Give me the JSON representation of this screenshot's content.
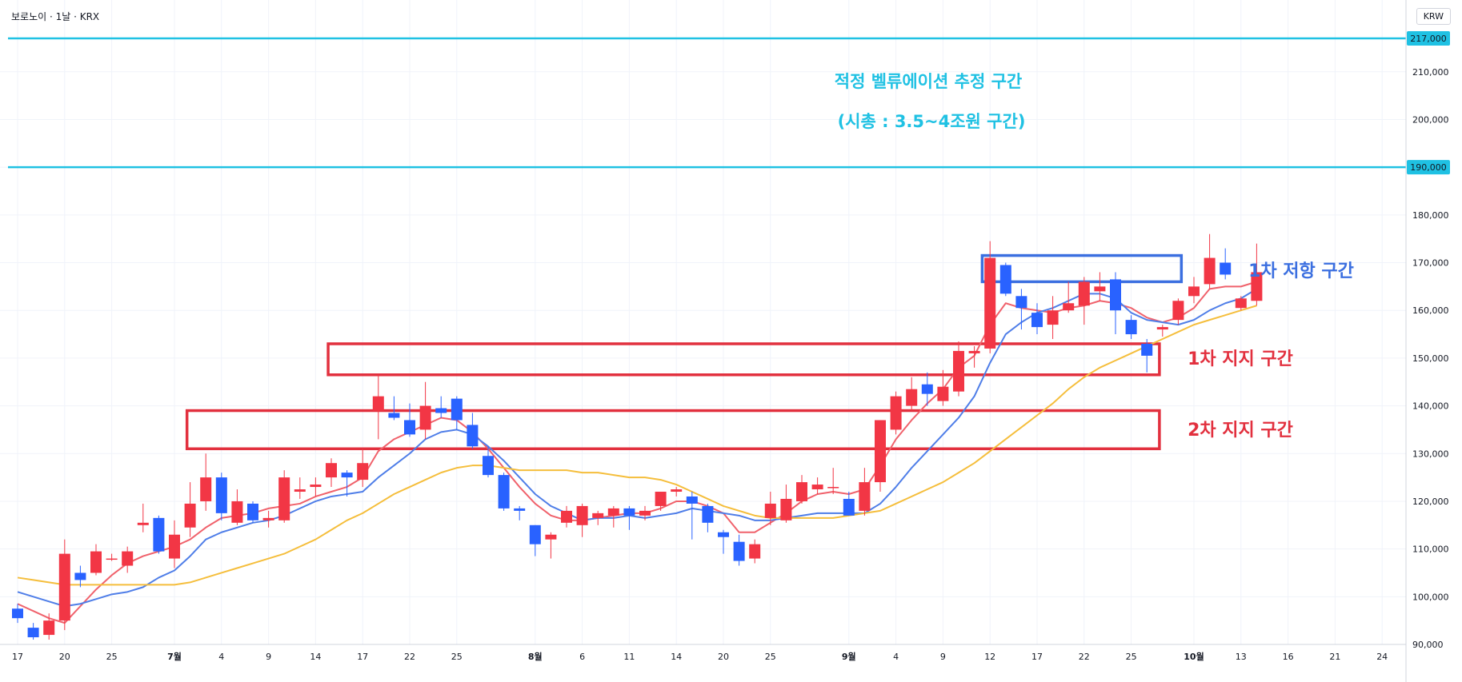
{
  "header": {
    "symbol_info": "보로노이 · 1날 · KRX",
    "currency": "KRW"
  },
  "colors": {
    "up": "#f23645",
    "down": "#2962ff",
    "ma_red": "#f0626c",
    "ma_blue": "#4f7ee8",
    "ma_yellow": "#f5be3c",
    "target_line": "#1fc1e3",
    "annotation_blue": "#3b6fe0",
    "annotation_red": "#e2303e",
    "text_cyan": "#1fc1e3"
  },
  "chart_data": {
    "type": "candlestick",
    "title": "",
    "xlabel": "",
    "ylabel": "",
    "ylim": [
      90000,
      220000
    ],
    "y_ticks": [
      90000,
      100000,
      110000,
      120000,
      130000,
      140000,
      150000,
      160000,
      170000,
      180000,
      190000,
      200000,
      210000,
      217000
    ],
    "y_tick_labels": [
      "90,000",
      "100,000",
      "110,000",
      "120,000",
      "130,000",
      "140,000",
      "150,000",
      "160,000",
      "170,000",
      "180,000",
      "190,000",
      "200,000",
      "210,000",
      "217,000"
    ],
    "grid": true,
    "x_ticks": [
      {
        "label": "17",
        "i": 0
      },
      {
        "label": "20",
        "i": 3
      },
      {
        "label": "25",
        "i": 6
      },
      {
        "label": "7월",
        "i": 10,
        "bold": true
      },
      {
        "label": "4",
        "i": 13
      },
      {
        "label": "9",
        "i": 16
      },
      {
        "label": "14",
        "i": 19
      },
      {
        "label": "17",
        "i": 22
      },
      {
        "label": "22",
        "i": 25
      },
      {
        "label": "25",
        "i": 28
      },
      {
        "label": "8월",
        "i": 33,
        "bold": true
      },
      {
        "label": "6",
        "i": 36
      },
      {
        "label": "11",
        "i": 39
      },
      {
        "label": "14",
        "i": 42
      },
      {
        "label": "20",
        "i": 45
      },
      {
        "label": "25",
        "i": 48
      },
      {
        "label": "9월",
        "i": 53,
        "bold": true
      },
      {
        "label": "4",
        "i": 56
      },
      {
        "label": "9",
        "i": 59
      },
      {
        "label": "12",
        "i": 62
      },
      {
        "label": "17",
        "i": 65
      },
      {
        "label": "22",
        "i": 68
      },
      {
        "label": "25",
        "i": 71
      },
      {
        "label": "10월",
        "i": 75,
        "bold": true
      },
      {
        "label": "13",
        "i": 78
      },
      {
        "label": "16",
        "i": 81
      },
      {
        "label": "21",
        "i": 84
      },
      {
        "label": "24",
        "i": 87
      }
    ],
    "candles": [
      [
        0,
        97500,
        95500,
        98500,
        94500
      ],
      [
        1,
        93500,
        91500,
        94500,
        91000
      ],
      [
        2,
        92000,
        95000,
        96500,
        91000
      ],
      [
        3,
        95000,
        109000,
        112000,
        93000
      ],
      [
        4,
        105000,
        103500,
        106500,
        102000
      ],
      [
        5,
        105000,
        109500,
        111000,
        104500
      ],
      [
        6,
        108000,
        108000,
        109000,
        107500
      ],
      [
        7,
        106500,
        109500,
        110500,
        105000
      ],
      [
        8,
        115000,
        115500,
        119500,
        113500
      ],
      [
        9,
        116500,
        109500,
        117000,
        109000
      ],
      [
        10,
        108000,
        113000,
        116000,
        106000
      ],
      [
        11,
        114500,
        119500,
        124000,
        112500
      ],
      [
        12,
        120000,
        125000,
        130000,
        118000
      ],
      [
        13,
        125000,
        117500,
        126000,
        116000
      ],
      [
        14,
        115500,
        120000,
        122500,
        115000
      ],
      [
        15,
        119500,
        116000,
        120000,
        115500
      ],
      [
        16,
        116000,
        116500,
        118000,
        114500
      ],
      [
        17,
        116000,
        125000,
        126500,
        115500
      ],
      [
        18,
        122000,
        122500,
        125000,
        120500
      ],
      [
        19,
        123000,
        123500,
        125000,
        121000
      ],
      [
        20,
        125000,
        128000,
        129000,
        123000
      ],
      [
        21,
        126000,
        125000,
        126500,
        121000
      ],
      [
        22,
        124500,
        128000,
        131000,
        123000
      ],
      [
        23,
        139000,
        142000,
        146500,
        133000
      ],
      [
        24,
        138500,
        137500,
        142000,
        137000
      ],
      [
        25,
        137000,
        134000,
        140500,
        133500
      ],
      [
        26,
        135000,
        140000,
        145000,
        133000
      ],
      [
        27,
        139500,
        138500,
        142000,
        137500
      ],
      [
        28,
        141500,
        137000,
        142000,
        135000
      ],
      [
        29,
        136000,
        131500,
        138500,
        131000
      ],
      [
        30,
        129500,
        125500,
        131500,
        125000
      ],
      [
        31,
        125500,
        118500,
        126000,
        118000
      ],
      [
        32,
        118500,
        118000,
        119000,
        116000
      ],
      [
        33,
        115000,
        111000,
        115000,
        108500
      ],
      [
        34,
        112000,
        113000,
        113500,
        108000
      ],
      [
        35,
        115500,
        118000,
        119000,
        114500
      ],
      [
        36,
        115000,
        119000,
        119500,
        112500
      ],
      [
        37,
        116500,
        117500,
        118000,
        115000
      ],
      [
        38,
        117000,
        118500,
        119000,
        114500
      ],
      [
        39,
        118500,
        117000,
        119000,
        114000
      ],
      [
        40,
        117000,
        118000,
        119000,
        116000
      ],
      [
        41,
        119000,
        122000,
        122000,
        118000
      ],
      [
        42,
        122000,
        122500,
        123000,
        121000
      ],
      [
        43,
        121000,
        119500,
        122000,
        112000
      ],
      [
        44,
        119000,
        115500,
        119500,
        113500
      ],
      [
        45,
        113500,
        112500,
        114000,
        109000
      ],
      [
        46,
        111500,
        107500,
        113000,
        106500
      ],
      [
        47,
        108000,
        111000,
        112000,
        107000
      ],
      [
        48,
        116500,
        119500,
        122000,
        115000
      ],
      [
        49,
        116000,
        120500,
        123500,
        115500
      ],
      [
        50,
        120000,
        124000,
        125500,
        119500
      ],
      [
        51,
        122500,
        123500,
        125000,
        121500
      ],
      [
        52,
        123000,
        123000,
        127000,
        121500
      ],
      [
        53,
        120500,
        117000,
        122000,
        117000
      ],
      [
        54,
        118000,
        124000,
        127000,
        117000
      ],
      [
        55,
        124000,
        137000,
        137000,
        122000
      ],
      [
        56,
        135000,
        142000,
        143000,
        134000
      ],
      [
        57,
        140000,
        143500,
        146000,
        139000
      ],
      [
        58,
        144500,
        142500,
        147000,
        140000
      ],
      [
        59,
        141000,
        144000,
        147500,
        140000
      ],
      [
        60,
        143000,
        151500,
        153500,
        142000
      ],
      [
        61,
        151000,
        151500,
        152500,
        148000
      ],
      [
        62,
        152000,
        171000,
        174500,
        151000
      ],
      [
        63,
        169500,
        163500,
        170000,
        163000
      ],
      [
        64,
        163000,
        160500,
        164500,
        156000
      ],
      [
        65,
        159500,
        156500,
        161500,
        155000
      ],
      [
        66,
        157000,
        160000,
        163000,
        154000
      ],
      [
        67,
        160000,
        161500,
        166000,
        159500
      ],
      [
        68,
        161000,
        166000,
        167000,
        157000
      ],
      [
        69,
        164000,
        165000,
        168000,
        162000
      ],
      [
        70,
        166500,
        160000,
        168000,
        155000
      ],
      [
        71,
        158000,
        155000,
        159000,
        154000
      ],
      [
        72,
        153000,
        150500,
        154000,
        147000
      ],
      [
        73,
        156000,
        156500,
        157000,
        154500
      ],
      [
        74,
        158000,
        162000,
        162500,
        157000
      ],
      [
        75,
        163000,
        165000,
        167000,
        161500
      ],
      [
        76,
        165500,
        171000,
        176000,
        164500
      ],
      [
        77,
        170000,
        167500,
        173000,
        166500
      ],
      [
        78,
        160500,
        162500,
        163000,
        160000
      ],
      [
        79,
        162000,
        168000,
        174000,
        161000
      ]
    ],
    "series": [
      {
        "values": [
          98500,
          97000,
          95500,
          94500,
          98000,
          101500,
          104500,
          107000,
          108500,
          109500,
          110500,
          112000,
          114500,
          116500,
          117000,
          117500,
          118500,
          119000,
          119500,
          121000,
          122000,
          123000,
          125000,
          130500,
          133000,
          134500,
          136000,
          137500,
          137000,
          134500,
          131000,
          127000,
          123000,
          119500,
          117000,
          116000,
          116000,
          116500,
          117000,
          117500,
          117500,
          118500,
          120000,
          120000,
          119000,
          117500,
          113500,
          113500,
          115500,
          117500,
          120000,
          121500,
          122000,
          121500,
          122500,
          127500,
          133000,
          137000,
          140500,
          143500,
          148000,
          150500,
          157000,
          161500,
          160500,
          160000,
          159500,
          160500,
          161000,
          162000,
          161500,
          160500,
          158500,
          157500,
          158500,
          160500,
          164500,
          165000,
          165000,
          166000
        ],
        "dash": null,
        "color_key": "ma_red"
      },
      {
        "values": [
          101000,
          100000,
          99000,
          98000,
          98500,
          99500,
          100500,
          101000,
          102000,
          104000,
          105500,
          108500,
          112000,
          113500,
          114500,
          115500,
          116000,
          117000,
          118500,
          120000,
          121000,
          121500,
          122000,
          125000,
          127500,
          130000,
          133000,
          134500,
          135000,
          134000,
          131500,
          128500,
          125000,
          121500,
          119000,
          117500,
          116000,
          116500,
          116500,
          117000,
          116500,
          117000,
          117500,
          118500,
          118000,
          117500,
          117000,
          116000,
          116000,
          116500,
          117000,
          117500,
          117500,
          117500,
          117500,
          119500,
          123000,
          127000,
          130500,
          134000,
          137500,
          142000,
          149000,
          155000,
          157500,
          159500,
          160500,
          162000,
          163500,
          163500,
          162500,
          159500,
          158000,
          157500,
          157000,
          158000,
          160000,
          161500,
          162500,
          164500
        ],
        "dash": null,
        "color_key": "ma_blue"
      },
      {
        "values": [
          104000,
          103500,
          103000,
          102500,
          102500,
          102500,
          102500,
          102500,
          102500,
          102500,
          102500,
          103000,
          104000,
          105000,
          106000,
          107000,
          108000,
          109000,
          110500,
          112000,
          114000,
          116000,
          117500,
          119500,
          121500,
          123000,
          124500,
          126000,
          127000,
          127500,
          127500,
          127000,
          126500,
          126500,
          126500,
          126500,
          126000,
          126000,
          125500,
          125000,
          125000,
          124500,
          123500,
          122000,
          120500,
          119000,
          118000,
          117000,
          116500,
          116500,
          116500,
          116500,
          116500,
          117000,
          117500,
          118000,
          119500,
          121000,
          122500,
          124000,
          126000,
          128000,
          130500,
          133000,
          135500,
          138000,
          140500,
          143500,
          146000,
          148000,
          149500,
          151000,
          152500,
          154000,
          155500,
          157000,
          158000,
          159000,
          160000,
          161000
        ],
        "dash": null,
        "color_key": "ma_yellow"
      }
    ],
    "reference_lines": [
      {
        "value": 217000,
        "label": "217,000"
      },
      {
        "value": 190000,
        "label": "190,000"
      }
    ],
    "annotations": {
      "valuation_line1": "적정 벨류에이션 추정 구간",
      "valuation_line2": "(시총 : 3.5~4조원 구간)",
      "resistance_label": "1차 저항 구간",
      "support1_label": "1차 지지 구간",
      "support2_label": "2차 지지 구간"
    }
  }
}
